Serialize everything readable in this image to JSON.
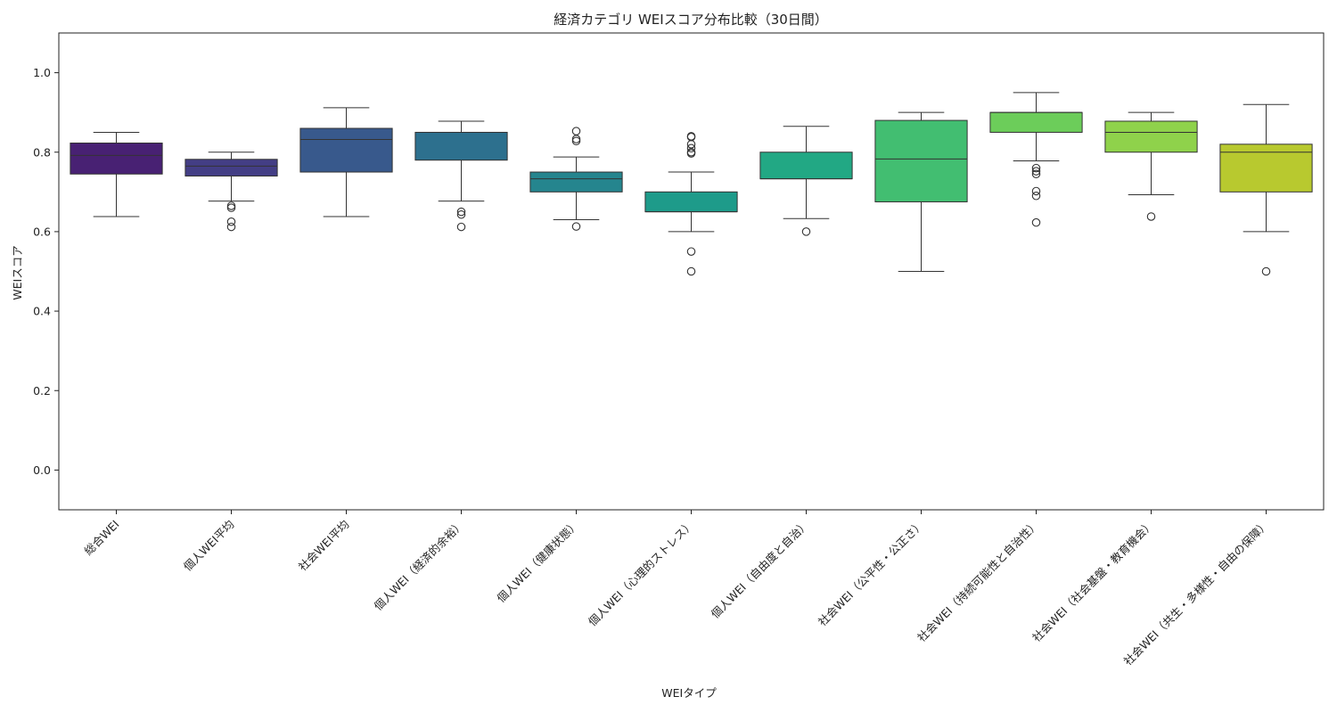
{
  "chart_data": {
    "type": "box",
    "title": "経済カテゴリ WEIスコア分布比較（30日間）",
    "xlabel": "WEIタイプ",
    "ylabel": "WEIスコア",
    "ylim": [
      -0.1,
      1.1
    ],
    "yticks": [
      0.0,
      0.2,
      0.4,
      0.6,
      0.8,
      1.0
    ],
    "ytick_labels": [
      "0.0",
      "0.2",
      "0.4",
      "0.6",
      "0.8",
      "1.0"
    ],
    "grid": false,
    "boxes": [
      {
        "label": "総合WEI",
        "color": "#482173",
        "whisker_low": 0.638,
        "q1": 0.745,
        "median": 0.792,
        "q3": 0.823,
        "whisker_high": 0.85,
        "outliers": []
      },
      {
        "label": "個人WEI平均",
        "color": "#433e85",
        "whisker_low": 0.677,
        "q1": 0.74,
        "median": 0.765,
        "q3": 0.782,
        "whisker_high": 0.8,
        "outliers": [
          0.66,
          0.665,
          0.625,
          0.612
        ]
      },
      {
        "label": "社会WEI平均",
        "color": "#38598c",
        "whisker_low": 0.638,
        "q1": 0.75,
        "median": 0.832,
        "q3": 0.86,
        "whisker_high": 0.912,
        "outliers": []
      },
      {
        "label": "個人WEI（経済的余裕）",
        "color": "#2d708e",
        "whisker_low": 0.677,
        "q1": 0.78,
        "median": 0.85,
        "q3": 0.85,
        "whisker_high": 0.878,
        "outliers": [
          0.65,
          0.643,
          0.612
        ]
      },
      {
        "label": "個人WEI（健康状態）",
        "color": "#25858e",
        "whisker_low": 0.63,
        "q1": 0.7,
        "median": 0.733,
        "q3": 0.75,
        "whisker_high": 0.788,
        "outliers": [
          0.853,
          0.833,
          0.828,
          0.613
        ]
      },
      {
        "label": "個人WEI（心理的ストレス）",
        "color": "#1e9b8a",
        "whisker_low": 0.6,
        "q1": 0.65,
        "median": 0.65,
        "q3": 0.7,
        "whisker_high": 0.75,
        "outliers": [
          0.84,
          0.838,
          0.82,
          0.81,
          0.8,
          0.797,
          0.55,
          0.5
        ]
      },
      {
        "label": "個人WEI（自由度と自治）",
        "color": "#22a884",
        "whisker_low": 0.633,
        "q1": 0.733,
        "median": 0.733,
        "q3": 0.8,
        "whisker_high": 0.865,
        "outliers": [
          0.6
        ]
      },
      {
        "label": "社会WEI（公平性・公正さ）",
        "color": "#42be71",
        "whisker_low": 0.5,
        "q1": 0.675,
        "median": 0.783,
        "q3": 0.88,
        "whisker_high": 0.9,
        "outliers": []
      },
      {
        "label": "社会WEI（持続可能性と自治性）",
        "color": "#6ccd5a",
        "whisker_low": 0.778,
        "q1": 0.85,
        "median": 0.9,
        "q3": 0.9,
        "whisker_high": 0.95,
        "outliers": [
          0.76,
          0.752,
          0.745,
          0.702,
          0.69,
          0.623
        ]
      },
      {
        "label": "社会WEI（社会基盤・教育機会）",
        "color": "#8fd24b",
        "whisker_low": 0.693,
        "q1": 0.8,
        "median": 0.85,
        "q3": 0.878,
        "whisker_high": 0.9,
        "outliers": [
          0.638
        ]
      },
      {
        "label": "社会WEI（共生・多様性・自由の保障）",
        "color": "#b8c92f",
        "whisker_low": 0.6,
        "q1": 0.7,
        "median": 0.8,
        "q3": 0.82,
        "whisker_high": 0.92,
        "outliers": [
          0.5
        ]
      }
    ]
  }
}
